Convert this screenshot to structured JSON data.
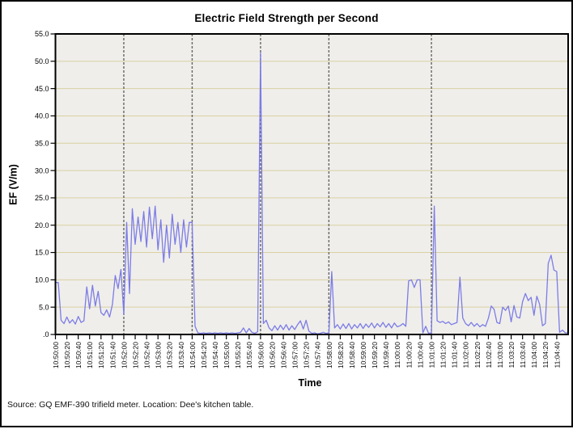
{
  "window": {
    "background": "#ffffff",
    "border_color": "#000000"
  },
  "chart_data": {
    "type": "line",
    "title": "Electric Field Strength per Second",
    "xlabel": "Time",
    "ylabel": "EF (V/m)",
    "ylim": [
      0,
      55
    ],
    "ytick_step": 5,
    "ytick_labels": [
      "55.0",
      "50.0",
      "45.0",
      "40.0",
      "35.0",
      "30.0",
      "25.0",
      "20.0",
      "15.0",
      "10.0",
      "5.0",
      ".0"
    ],
    "xtick_interval_seconds": 20,
    "x_total_seconds": 900,
    "xtick_labels": [
      "10:50:00",
      "10:50:20",
      "10:50:40",
      "10:51:00",
      "10:51:20",
      "10:51:40",
      "10:52:00",
      "10:52:20",
      "10:52:40",
      "10:53:00",
      "10:53:20",
      "10:53:40",
      "10:54:00",
      "10:54:20",
      "10:54:40",
      "10:55:00",
      "10:55:20",
      "10:55:40",
      "10:56:00",
      "10:56:20",
      "10:56:40",
      "10:57:00",
      "10:57:20",
      "10:57:40",
      "10:58:00",
      "10:58:20",
      "10:58:40",
      "10:59:00",
      "10:59:20",
      "10:59:40",
      "11:00:00",
      "11:00:20",
      "11:00:40",
      "11:01:00",
      "11:01:20",
      "11:01:40",
      "11:02:00",
      "11:02:20",
      "11:02:40",
      "11:03:00",
      "11:03:20",
      "11:03:40",
      "11:04:00",
      "11:04:20",
      "11:04:40"
    ],
    "grid": "horizontal",
    "legend": "none",
    "event_lines": [
      "10:52:00",
      "10:54:00",
      "10:56:00",
      "10:58:00",
      "11:01:00"
    ],
    "series": [
      {
        "name": "EF (V/m)",
        "start_time": "10:50:00",
        "sample_interval_seconds": 5,
        "values": [
          9.5,
          9.5,
          2.6,
          2,
          3.2,
          2.1,
          2.7,
          1.9,
          3.3,
          2.2,
          2.5,
          8.7,
          4.7,
          9,
          5.2,
          7.9,
          4,
          3.5,
          4.5,
          3.2,
          5.5,
          10.8,
          8.4,
          11.9,
          3.7,
          20.5,
          7.5,
          23,
          16.5,
          21.5,
          17,
          22.5,
          16,
          23.3,
          17.5,
          23.5,
          15.5,
          21,
          13.2,
          20,
          14,
          22,
          16.5,
          20.5,
          15,
          21,
          16,
          20.5,
          20.5,
          1.5,
          0.3,
          0.2,
          0.3,
          0.2,
          0.3,
          0.2,
          0.3,
          0.2,
          0.3,
          0.2,
          0.3,
          0.2,
          0.3,
          0.2,
          0.3,
          0.4,
          1.2,
          0.3,
          1.1,
          0.4,
          0.2,
          0.5,
          51.5,
          2,
          2.6,
          1.2,
          0.7,
          1.6,
          0.8,
          1.7,
          0.9,
          1.8,
          0.8,
          1.6,
          0.9,
          1.8,
          2.5,
          1,
          2.6,
          0.6,
          0.2,
          0.3,
          0.1,
          0.2,
          0.4,
          0.2,
          0.3,
          11.5,
          1.2,
          1.8,
          1,
          1.9,
          1.1,
          2,
          1,
          1.8,
          1.2,
          2,
          1.1,
          1.9,
          1.3,
          2.1,
          1.2,
          2,
          1.4,
          2.2,
          1.3,
          2,
          1.2,
          2.1,
          1.4,
          1.6,
          2,
          1.5,
          9.8,
          10,
          8.6,
          10,
          10,
          0.3,
          1.5,
          0.2,
          0.3,
          23.5,
          2.5,
          2.2,
          2.4,
          2,
          2.3,
          1.8,
          2,
          2.2,
          10.5,
          3,
          2,
          1.6,
          2.2,
          1.5,
          2,
          1.4,
          1.8,
          1.5,
          3,
          5.2,
          4.6,
          2.2,
          2,
          5,
          4.4,
          5.2,
          2.3,
          5.3,
          3.2,
          3,
          6,
          7.5,
          6.2,
          6.8,
          3.5,
          7,
          5.5,
          1.6,
          2,
          13,
          14.5,
          11.8,
          11.5,
          0.4,
          0.8,
          0.3,
          0.3
        ]
      }
    ],
    "colors": {
      "line": "#7c7ce6",
      "grid": "#d9d1a0",
      "plot_bg": "#efeeeb",
      "event_line": "#666666",
      "axis": "#000000",
      "text": "#000000"
    }
  },
  "footer": {
    "source_note": "Source: GQ EMF-390 trifield meter. Location: Dee's kitchen table."
  }
}
